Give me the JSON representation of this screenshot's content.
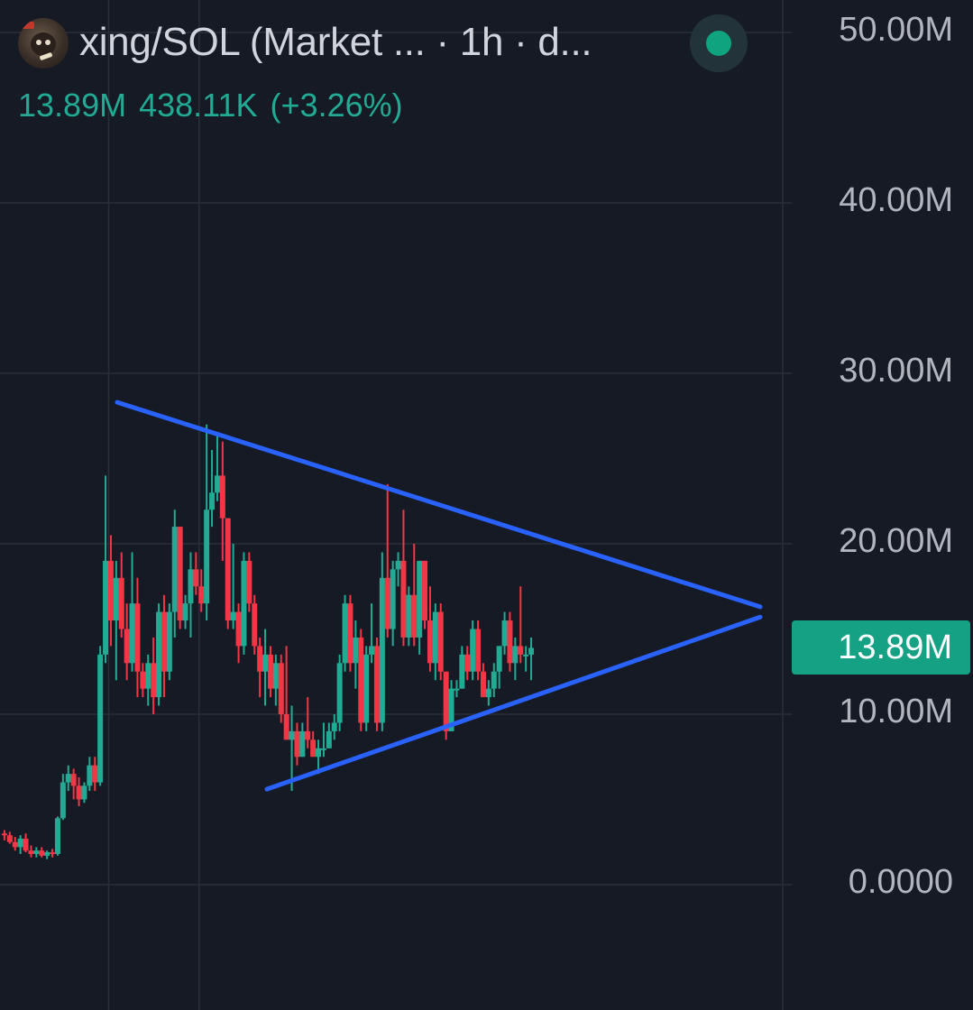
{
  "header": {
    "title": "xing/SOL (Market ... · 1h · d...",
    "stats": {
      "last": "13.89M",
      "change": "438.11K",
      "change_pct": "(+3.26%)"
    },
    "avatar_icon": "token-avatar-icon",
    "status_icon": "live-status-dot-icon"
  },
  "colors": {
    "background": "#161a25",
    "up": "#22ab94",
    "down": "#f23645",
    "trendline": "#2962ff",
    "grid": "#2a2e39"
  },
  "chart_data": {
    "type": "candlestick",
    "ylim": [
      -1,
      52
    ],
    "y_ticks": [
      "0.0000",
      "10.00M",
      "20.00M",
      "30.00M",
      "40.00M",
      "50.00M"
    ],
    "y_tick_values": [
      0,
      10,
      20,
      30,
      40,
      50
    ],
    "last_price_label": "13.89M",
    "last_price": 13.89,
    "candles": [
      [
        3.0,
        3.2,
        2.6,
        2.9
      ],
      [
        2.9,
        3.1,
        2.4,
        2.5
      ],
      [
        2.5,
        2.8,
        2.0,
        2.2
      ],
      [
        2.2,
        2.9,
        1.8,
        2.7
      ],
      [
        2.7,
        3.0,
        1.9,
        2.0
      ],
      [
        2.0,
        2.3,
        1.6,
        1.8
      ],
      [
        1.8,
        2.2,
        1.6,
        2.0
      ],
      [
        2.0,
        2.2,
        1.6,
        1.7
      ],
      [
        1.7,
        2.0,
        1.5,
        1.9
      ],
      [
        1.9,
        2.1,
        1.6,
        1.8
      ],
      [
        1.8,
        4.0,
        1.7,
        3.9
      ],
      [
        3.9,
        6.5,
        3.8,
        6.0
      ],
      [
        6.0,
        7.0,
        5.5,
        6.5
      ],
      [
        6.5,
        6.8,
        5.0,
        5.8
      ],
      [
        5.8,
        6.3,
        4.6,
        5.0
      ],
      [
        5.0,
        6.0,
        4.8,
        5.8
      ],
      [
        5.8,
        7.5,
        5.5,
        7.0
      ],
      [
        7.0,
        7.5,
        5.5,
        6.0
      ],
      [
        6.0,
        14.0,
        5.8,
        13.5
      ],
      [
        13.5,
        24.0,
        13.0,
        19.0
      ],
      [
        19.0,
        20.5,
        14.0,
        15.5
      ],
      [
        15.5,
        19.0,
        12.0,
        18.0
      ],
      [
        18.0,
        19.5,
        14.5,
        15.0
      ],
      [
        15.0,
        16.5,
        12.0,
        13.0
      ],
      [
        13.0,
        19.5,
        12.5,
        16.5
      ],
      [
        16.5,
        18.0,
        11.0,
        12.5
      ],
      [
        12.5,
        13.0,
        11.0,
        11.5
      ],
      [
        11.5,
        13.5,
        10.5,
        13.0
      ],
      [
        13.0,
        14.5,
        10.0,
        11.0
      ],
      [
        11.0,
        16.5,
        10.5,
        16.0
      ],
      [
        16.0,
        17.0,
        11.0,
        12.5
      ],
      [
        12.5,
        16.5,
        12.0,
        16.0
      ],
      [
        16.0,
        22.0,
        14.5,
        21.0
      ],
      [
        21.0,
        21.0,
        15.0,
        15.5
      ],
      [
        15.5,
        17.0,
        15.0,
        16.5
      ],
      [
        16.5,
        19.5,
        14.5,
        18.5
      ],
      [
        18.5,
        19.5,
        17.0,
        17.5
      ],
      [
        17.5,
        18.5,
        16.0,
        16.5
      ],
      [
        16.5,
        27.0,
        15.5,
        22.0
      ],
      [
        22.0,
        25.5,
        21.0,
        23.0
      ],
      [
        23.0,
        26.5,
        22.5,
        24.0
      ],
      [
        24.0,
        26.0,
        19.0,
        21.5
      ],
      [
        21.5,
        21.5,
        15.0,
        15.5
      ],
      [
        15.5,
        20.0,
        15.0,
        16.0
      ],
      [
        16.0,
        16.5,
        13.0,
        14.0
      ],
      [
        14.0,
        19.5,
        13.5,
        19.0
      ],
      [
        19.0,
        19.5,
        16.0,
        16.5
      ],
      [
        16.5,
        17.0,
        13.5,
        14.0
      ],
      [
        14.0,
        14.5,
        11.0,
        12.5
      ],
      [
        12.5,
        15.0,
        10.5,
        13.5
      ],
      [
        13.5,
        14.0,
        11.0,
        11.5
      ],
      [
        11.5,
        13.5,
        10.5,
        13.0
      ],
      [
        13.0,
        13.5,
        9.5,
        10.0
      ],
      [
        10.0,
        14.0,
        8.5,
        8.5
      ],
      [
        8.5,
        10.5,
        5.5,
        9.0
      ],
      [
        9.0,
        9.5,
        7.0,
        7.5
      ],
      [
        7.5,
        9.5,
        7.5,
        9.0
      ],
      [
        9.0,
        11.0,
        8.0,
        8.5
      ],
      [
        8.5,
        9.0,
        7.5,
        7.5
      ],
      [
        7.5,
        8.5,
        6.5,
        8.0
      ],
      [
        8.0,
        9.5,
        7.5,
        8.0
      ],
      [
        8.0,
        9.5,
        8.0,
        9.0
      ],
      [
        9.0,
        10.0,
        8.5,
        9.5
      ],
      [
        9.5,
        13.5,
        9.0,
        13.0
      ],
      [
        13.0,
        17.0,
        12.5,
        16.5
      ],
      [
        16.5,
        17.0,
        12.5,
        13.0
      ],
      [
        13.0,
        15.5,
        11.5,
        14.5
      ],
      [
        14.5,
        15.0,
        9.0,
        9.5
      ],
      [
        9.5,
        14.0,
        9.0,
        13.5
      ],
      [
        13.5,
        16.5,
        13.0,
        14.0
      ],
      [
        14.0,
        14.5,
        9.0,
        9.5
      ],
      [
        9.5,
        19.5,
        9.0,
        18.0
      ],
      [
        18.0,
        23.5,
        14.5,
        15.0
      ],
      [
        15.0,
        19.0,
        14.0,
        18.5
      ],
      [
        18.5,
        19.5,
        17.5,
        19.0
      ],
      [
        19.0,
        22.0,
        14.0,
        14.5
      ],
      [
        14.5,
        17.5,
        14.0,
        17.0
      ],
      [
        17.0,
        20.0,
        14.0,
        14.5
      ],
      [
        14.5,
        19.0,
        13.5,
        19.0
      ],
      [
        19.0,
        19.0,
        15.0,
        15.5
      ],
      [
        15.5,
        17.5,
        12.5,
        13.0
      ],
      [
        13.0,
        16.5,
        12.0,
        16.0
      ],
      [
        16.0,
        16.5,
        12.0,
        12.5
      ],
      [
        12.5,
        12.5,
        8.5,
        9.0
      ],
      [
        9.0,
        12.0,
        9.0,
        11.5
      ],
      [
        11.5,
        12.0,
        11.0,
        11.5
      ],
      [
        11.5,
        14.0,
        11.5,
        13.5
      ],
      [
        13.5,
        14.0,
        12.0,
        12.5
      ],
      [
        12.5,
        15.5,
        12.0,
        15.0
      ],
      [
        15.0,
        15.5,
        12.0,
        12.5
      ],
      [
        12.5,
        13.0,
        11.0,
        11.0
      ],
      [
        11.0,
        12.0,
        10.5,
        11.5
      ],
      [
        11.5,
        13.0,
        11.0,
        12.5
      ],
      [
        12.5,
        14.0,
        11.5,
        14.0
      ],
      [
        14.0,
        16.0,
        13.5,
        15.5
      ],
      [
        15.5,
        16.0,
        12.5,
        13.0
      ],
      [
        13.0,
        14.5,
        12.0,
        14.0
      ],
      [
        14.0,
        17.5,
        13.0,
        13.5
      ],
      [
        13.5,
        14.0,
        12.5,
        13.5
      ],
      [
        13.5,
        14.5,
        12.0,
        13.89
      ]
    ],
    "trendlines": [
      {
        "from": [
          7,
          28.3
        ],
        "to": [
          39,
          16.3
        ]
      },
      {
        "from": [
          16,
          5.6
        ],
        "to": [
          39,
          15.7
        ]
      }
    ],
    "x_grid_at": [
      5.5,
      22.5
    ]
  }
}
